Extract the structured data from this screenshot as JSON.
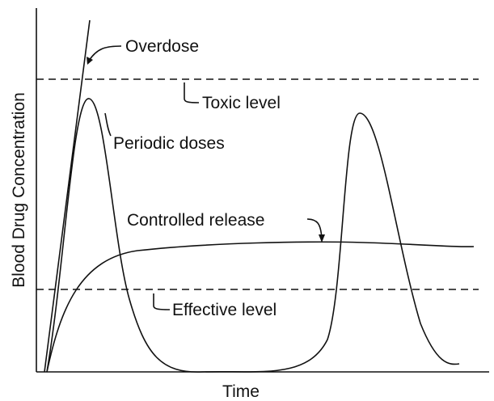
{
  "axes": {
    "y_label": "Blood Drug Concentration",
    "x_label": "Time"
  },
  "labels": {
    "overdose": "Overdose",
    "toxic": "Toxic level",
    "periodic": "Periodic doses",
    "controlled": "Controlled release",
    "effective": "Effective level"
  }
}
